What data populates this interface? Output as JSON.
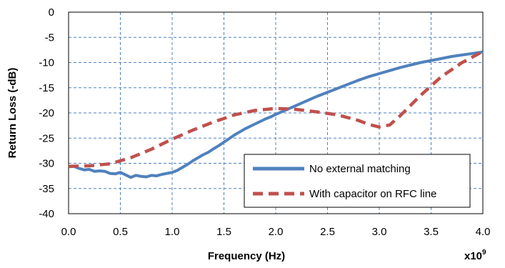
{
  "chart_data": {
    "type": "line",
    "xlabel": "Frequency (Hz)",
    "x_multiplier": {
      "base": "x10",
      "exponent": "9"
    },
    "ylabel": "Return Loss (-dB)",
    "xlim": [
      0,
      4.0
    ],
    "ylim": [
      -40,
      0
    ],
    "x_ticks": [
      "0.0",
      "0.5",
      "1.0",
      "1.5",
      "2.0",
      "2.5",
      "3.0",
      "3.5",
      "4.0"
    ],
    "y_ticks": [
      "0",
      "-5",
      "-10",
      "-15",
      "-20",
      "-25",
      "-30",
      "-35",
      "-40"
    ],
    "grid": true,
    "grid_style": "dashed",
    "legend_position": "bottom-right",
    "series": [
      {
        "name": "No external matching",
        "color": "#4F81BD",
        "line_style": "solid",
        "x": [
          0.0,
          0.05,
          0.1,
          0.15,
          0.2,
          0.25,
          0.3,
          0.35,
          0.4,
          0.45,
          0.5,
          0.55,
          0.6,
          0.65,
          0.7,
          0.75,
          0.8,
          0.85,
          0.9,
          0.95,
          1.0,
          1.05,
          1.1,
          1.15,
          1.2,
          1.25,
          1.3,
          1.35,
          1.4,
          1.45,
          1.5,
          1.55,
          1.6,
          1.65,
          1.7,
          1.75,
          1.8,
          1.85,
          1.9,
          1.95,
          2.0,
          2.1,
          2.2,
          2.3,
          2.4,
          2.5,
          2.6,
          2.7,
          2.8,
          2.9,
          3.0,
          3.1,
          3.2,
          3.3,
          3.4,
          3.5,
          3.6,
          3.7,
          3.8,
          3.9,
          4.0
        ],
        "y": [
          -30.7,
          -30.6,
          -31.0,
          -31.3,
          -31.2,
          -31.6,
          -31.5,
          -31.6,
          -32.0,
          -32.1,
          -31.8,
          -32.3,
          -32.8,
          -32.4,
          -32.6,
          -32.7,
          -32.4,
          -32.5,
          -32.2,
          -32.0,
          -31.8,
          -31.4,
          -30.8,
          -30.2,
          -29.5,
          -28.9,
          -28.3,
          -27.8,
          -27.1,
          -26.5,
          -25.8,
          -25.1,
          -24.4,
          -23.8,
          -23.2,
          -22.7,
          -22.2,
          -21.7,
          -21.2,
          -20.8,
          -20.3,
          -19.4,
          -18.5,
          -17.6,
          -16.7,
          -15.9,
          -15.1,
          -14.3,
          -13.5,
          -12.8,
          -12.2,
          -11.6,
          -11.0,
          -10.5,
          -10.0,
          -9.6,
          -9.2,
          -8.8,
          -8.5,
          -8.2,
          -7.9
        ]
      },
      {
        "name": "With capacitor on RFC line",
        "color": "#C0504D",
        "line_style": "dashed",
        "x": [
          0.0,
          0.2,
          0.4,
          0.6,
          0.8,
          1.0,
          1.2,
          1.4,
          1.6,
          1.8,
          2.0,
          2.2,
          2.4,
          2.6,
          2.8,
          2.9,
          3.0,
          3.1,
          3.2,
          3.4,
          3.6,
          3.8,
          4.0
        ],
        "y": [
          -30.6,
          -30.5,
          -30.1,
          -28.9,
          -27.2,
          -25.2,
          -23.4,
          -21.8,
          -20.4,
          -19.5,
          -19.1,
          -19.3,
          -19.8,
          -20.4,
          -21.5,
          -22.3,
          -22.8,
          -22.4,
          -20.6,
          -16.5,
          -12.8,
          -10.0,
          -7.8
        ]
      }
    ]
  }
}
